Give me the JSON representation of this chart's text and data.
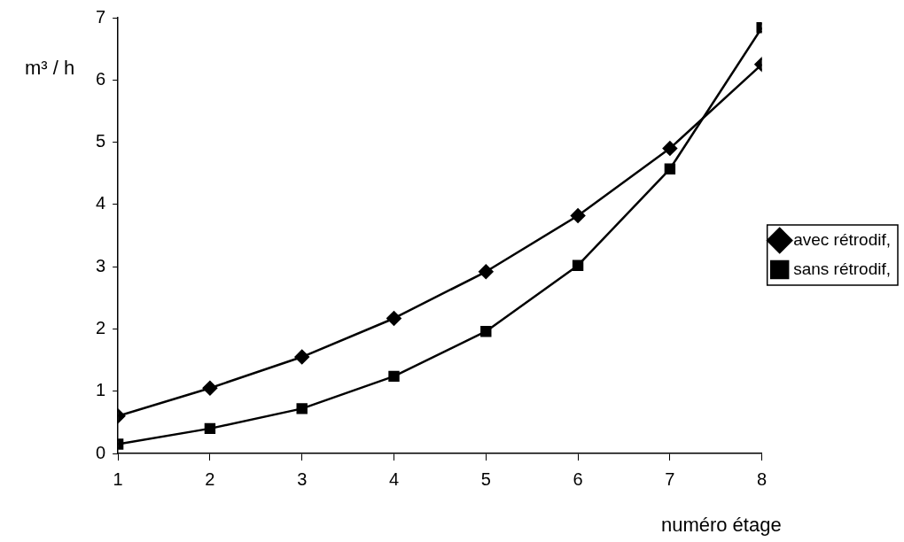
{
  "chart_data": {
    "type": "line",
    "xlabel": "numéro étage",
    "ylabel": "m³ / h",
    "x": [
      1,
      2,
      3,
      4,
      5,
      6,
      7,
      8
    ],
    "series": [
      {
        "name": "avec rétrodif,",
        "color": "#000000",
        "marker": "diamond",
        "values": [
          0.6,
          1.05,
          1.55,
          2.17,
          2.92,
          3.82,
          4.9,
          6.25
        ]
      },
      {
        "name": "sans rétrodif,",
        "color": "#000000",
        "marker": "square",
        "values": [
          0.15,
          0.4,
          0.72,
          1.24,
          1.96,
          3.02,
          4.57,
          6.84
        ]
      }
    ],
    "xlim": [
      1,
      8
    ],
    "xticks": [
      1,
      2,
      3,
      4,
      5,
      6,
      7,
      8
    ],
    "ylim": [
      0,
      7
    ],
    "yticks": [
      0,
      1,
      2,
      3,
      4,
      5,
      6,
      7
    ],
    "grid": false,
    "legend": "right",
    "line_style": "solid"
  }
}
